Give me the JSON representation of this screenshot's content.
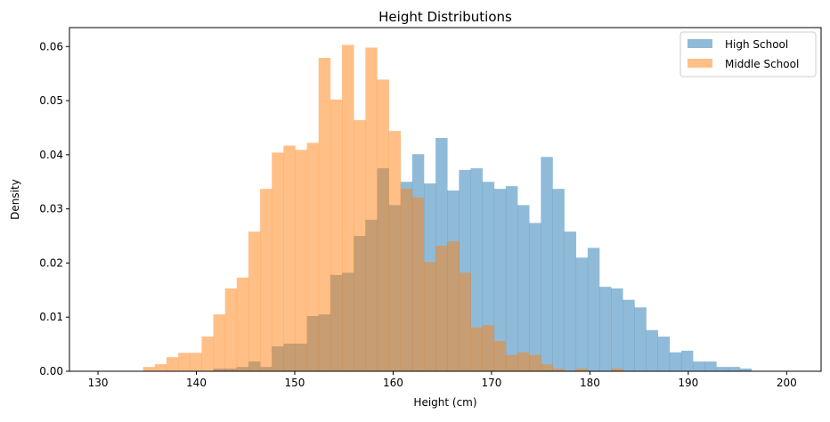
{
  "chart_data": {
    "type": "histogram",
    "title": "Height Distributions",
    "xlabel": "Height (cm)",
    "ylabel": "Density",
    "xlim": [
      127.1,
      203.5
    ],
    "ylim": [
      0,
      0.0635
    ],
    "xticks": [
      130,
      140,
      150,
      160,
      170,
      180,
      190,
      200
    ],
    "xtick_labels": [
      "130",
      "140",
      "150",
      "160",
      "170",
      "180",
      "190",
      "200"
    ],
    "yticks": [
      0,
      0.01,
      0.02,
      0.03,
      0.04,
      0.05,
      0.06
    ],
    "ytick_labels": [
      "0.00",
      "0.01",
      "0.02",
      "0.03",
      "0.04",
      "0.05",
      "0.06"
    ],
    "grid": false,
    "legend_position": "top-right",
    "bins": {
      "start": 134.59,
      "width": 1.189,
      "count": 52
    },
    "series": [
      {
        "name": "High School",
        "color": "#1f77b4",
        "alpha": 0.5,
        "values": [
          0,
          0,
          0,
          0,
          0,
          0,
          0.0005,
          0.0005,
          0.0008,
          0.0018,
          0.0008,
          0.0046,
          0.0051,
          0.0051,
          0.0102,
          0.0105,
          0.0178,
          0.0182,
          0.025,
          0.028,
          0.0375,
          0.0307,
          0.035,
          0.0401,
          0.0347,
          0.0431,
          0.0334,
          0.0372,
          0.0375,
          0.035,
          0.0337,
          0.0342,
          0.0307,
          0.0274,
          0.0396,
          0.0337,
          0.0258,
          0.021,
          0.0228,
          0.0156,
          0.0153,
          0.0132,
          0.0118,
          0.0076,
          0.0064,
          0.0035,
          0.0038,
          0.0018,
          0.0018,
          0.0008,
          0.0008,
          0.0005
        ]
      },
      {
        "name": "Middle School",
        "color": "#ff7f0e",
        "alpha": 0.5,
        "values": [
          0.0008,
          0.0013,
          0.0026,
          0.0034,
          0.0034,
          0.0064,
          0.0105,
          0.0153,
          0.0173,
          0.0258,
          0.0337,
          0.0404,
          0.0417,
          0.0409,
          0.0422,
          0.0579,
          0.0502,
          0.0603,
          0.0464,
          0.0598,
          0.0539,
          0.0444,
          0.0337,
          0.0321,
          0.0202,
          0.0232,
          0.024,
          0.0182,
          0.0081,
          0.0085,
          0.0056,
          0.003,
          0.0035,
          0.003,
          0.0013,
          0.0005,
          0,
          0.0005,
          0,
          0,
          0.0005,
          0,
          0,
          0,
          0,
          0,
          0,
          0,
          0,
          0,
          0,
          0
        ]
      }
    ]
  }
}
